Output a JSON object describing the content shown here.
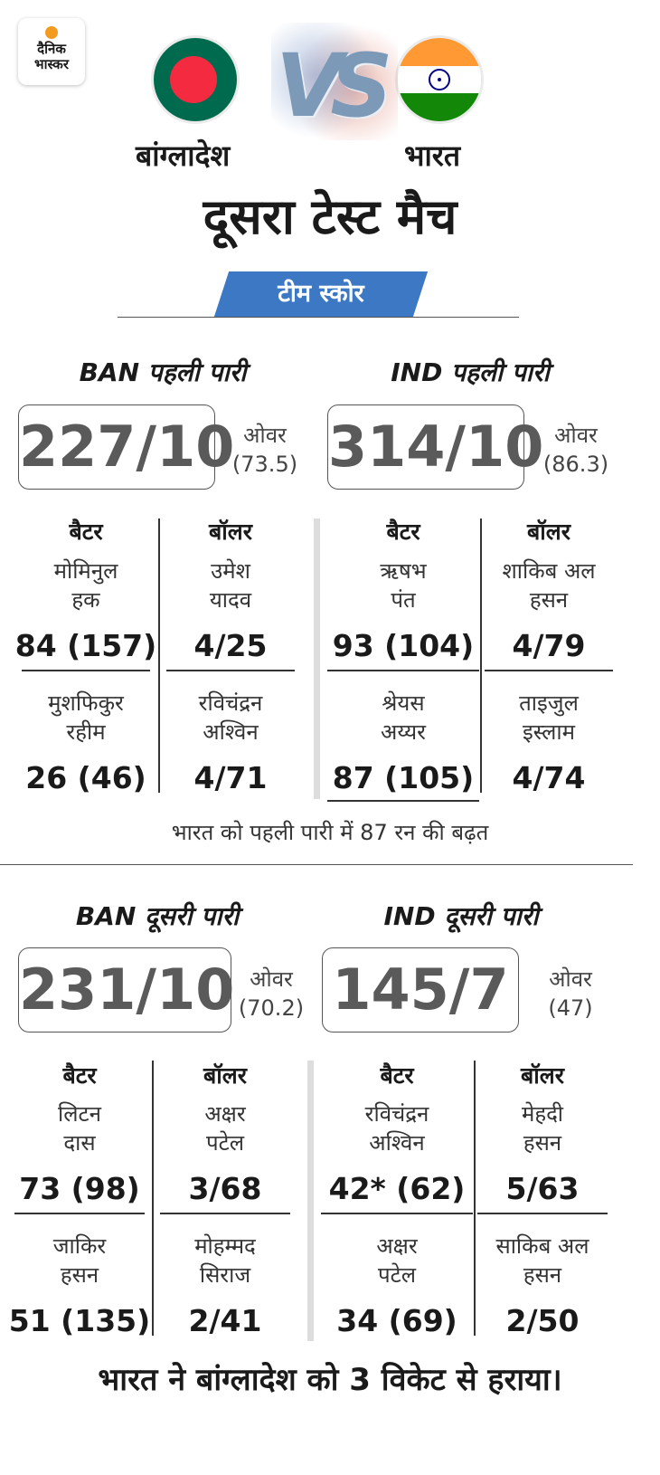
{
  "brand": {
    "line1": "दैनिक",
    "line2": "भास्कर"
  },
  "header": {
    "team_left": "बांग्लादेश",
    "team_right": "भारत",
    "vs": "VS",
    "title": "दूसरा टेस्ट मैच",
    "tag": "टीम स्कोर"
  },
  "labels": {
    "batter": "बैटर",
    "bowler": "बॉलर",
    "overs": "ओवर"
  },
  "innings": [
    {
      "title": "BAN पहली पारी",
      "score": "227/10",
      "overs": "(73.5)",
      "batters": [
        {
          "name1": "मोमिनुल",
          "name2": "हक",
          "fig": "84 (157)"
        },
        {
          "name1": "मुशफिकुर",
          "name2": "रहीम",
          "fig": "26 (46)"
        }
      ],
      "bowlers": [
        {
          "name1": "उमेश",
          "name2": "यादव",
          "fig": "4/25"
        },
        {
          "name1": "रविचंद्रन",
          "name2": "अश्विन",
          "fig": "4/71"
        }
      ]
    },
    {
      "title": "IND पहली पारी",
      "score": "314/10",
      "overs": "(86.3)",
      "batters": [
        {
          "name1": "ऋषभ",
          "name2": "पंत",
          "fig": "93 (104)"
        },
        {
          "name1": "श्रेयस",
          "name2": "अय्यर",
          "fig": "87 (105)"
        }
      ],
      "bowlers": [
        {
          "name1": "शाकिब अल",
          "name2": "हसन",
          "fig": "4/79"
        },
        {
          "name1": "ताइजुल",
          "name2": "इस्लाम",
          "fig": "4/74"
        }
      ]
    },
    {
      "title": "BAN दूसरी पारी",
      "score": "231/10",
      "overs": "(70.2)",
      "batters": [
        {
          "name1": "लिटन",
          "name2": "दास",
          "fig": "73 (98)"
        },
        {
          "name1": "जाकिर",
          "name2": "हसन",
          "fig": "51 (135)"
        }
      ],
      "bowlers": [
        {
          "name1": "अक्षर",
          "name2": "पटेल",
          "fig": "3/68"
        },
        {
          "name1": "मोहम्मद",
          "name2": "सिराज",
          "fig": "2/41"
        }
      ]
    },
    {
      "title": "IND दूसरी पारी",
      "score": "145/7",
      "overs": "(47)",
      "batters": [
        {
          "name1": "रविचंद्रन",
          "name2": "अश्विन",
          "fig": "42* (62)"
        },
        {
          "name1": "अक्षर",
          "name2": "पटेल",
          "fig": "34 (69)"
        }
      ],
      "bowlers": [
        {
          "name1": "मेहदी",
          "name2": "हसन",
          "fig": "5/63"
        },
        {
          "name1": "साकिब अल",
          "name2": "हसन",
          "fig": "2/50"
        }
      ]
    }
  ],
  "lead_note": "भारत को पहली पारी में 87 रन की बढ़त",
  "result": "भारत ने बांग्लादेश को 3 विकेट से हराया।",
  "colors": {
    "tag_bg": "#3d78c4",
    "bangladesh_green": "#006a4e",
    "bangladesh_red": "#f42a41",
    "india_saffron": "#ff9933",
    "india_green": "#138808",
    "chakra_blue": "#000080"
  }
}
